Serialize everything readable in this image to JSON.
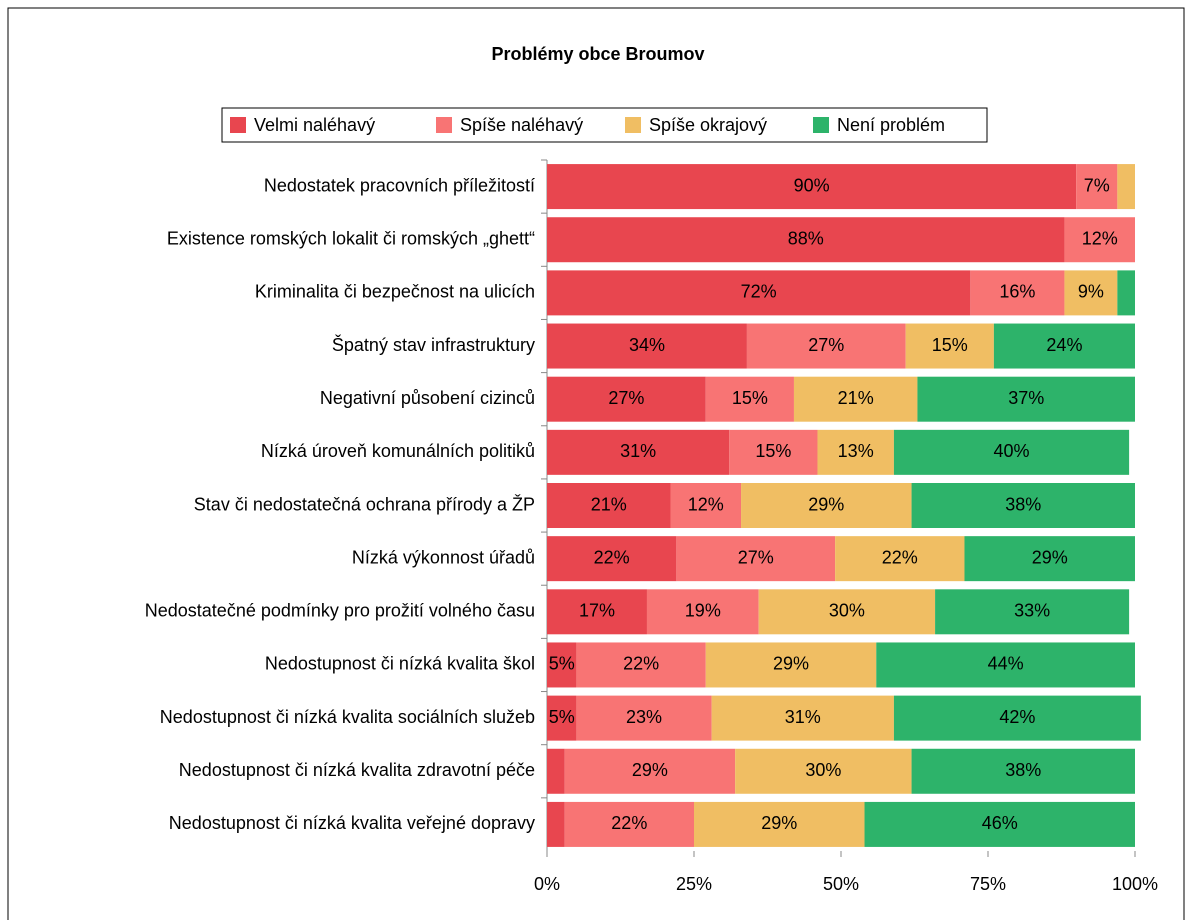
{
  "chart_data": {
    "type": "stacked-bar-horizontal",
    "title": "Problémy obce Broumov",
    "categories": [
      "Nedostatek pracovních příležitostí",
      "Existence romských lokalit či romských „ghett“",
      "Kriminalita či bezpečnost na ulicích",
      "Špatný stav infrastruktury",
      "Negativní působení cizinců",
      "Nízká úroveň komunálních politiků",
      "Stav či nedostatečná ochrana přírody a ŽP",
      "Nízká výkonnost úřadů",
      "Nedostatečné podmínky pro prožití volného času",
      "Nedostupnost či nízká kvalita škol",
      "Nedostupnost či nízká kvalita sociálních služeb",
      "Nedostupnost či nízká kvalita zdravotní péče",
      "Nedostupnost či nízká kvalita veřejné dopravy"
    ],
    "series": [
      {
        "name": "Velmi naléhavý",
        "color": "#e8464f",
        "values": [
          90,
          88,
          72,
          34,
          27,
          31,
          21,
          22,
          17,
          5,
          5,
          3,
          3
        ],
        "value_labels": [
          "90%",
          "88%",
          "72%",
          "34%",
          "27%",
          "31%",
          "21%",
          "22%",
          "17%",
          "5%",
          "5%",
          null,
          null
        ]
      },
      {
        "name": "Spíše naléhavý",
        "color": "#f87474",
        "values": [
          7,
          12,
          16,
          27,
          15,
          15,
          12,
          27,
          19,
          22,
          23,
          29,
          22
        ],
        "value_labels": [
          "7%",
          "12%",
          "16%",
          "27%",
          "15%",
          "15%",
          "12%",
          "27%",
          "19%",
          "22%",
          "23%",
          "29%",
          "22%"
        ]
      },
      {
        "name": "Spíše okrajový",
        "color": "#f0be63",
        "values": [
          3,
          0,
          9,
          15,
          21,
          13,
          29,
          22,
          30,
          29,
          31,
          30,
          29
        ],
        "value_labels": [
          null,
          null,
          "9%",
          "15%",
          "21%",
          "13%",
          "29%",
          "22%",
          "30%",
          "29%",
          "31%",
          "30%",
          "29%"
        ]
      },
      {
        "name": "Není problém",
        "color": "#2db36a",
        "values": [
          0,
          0,
          3,
          24,
          37,
          40,
          38,
          29,
          33,
          44,
          42,
          38,
          46
        ],
        "value_labels": [
          null,
          null,
          null,
          "24%",
          "37%",
          "40%",
          "38%",
          "29%",
          "33%",
          "44%",
          "42%",
          "38%",
          "46%"
        ]
      }
    ],
    "xlim": [
      0,
      100
    ],
    "xticks": [
      {
        "value": 0,
        "label": "0%"
      },
      {
        "value": 25,
        "label": "25%"
      },
      {
        "value": 50,
        "label": "50%"
      },
      {
        "value": 75,
        "label": "75%"
      },
      {
        "value": 100,
        "label": "100%"
      }
    ],
    "legend": "top"
  }
}
